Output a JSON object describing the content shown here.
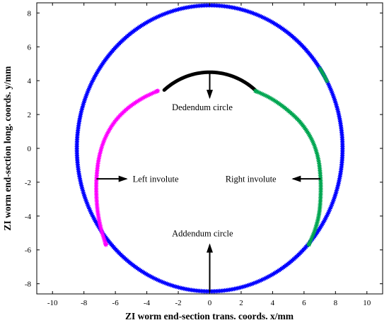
{
  "chart_data": {
    "type": "line",
    "title": "",
    "xlabel": "ZI worm end-section trans. coords. x/mm",
    "ylabel": "ZI worm end-section long. coords. y/mm",
    "xlim": [
      -11,
      11
    ],
    "ylim": [
      -8.6,
      8.6
    ],
    "xticks": [
      -10,
      -8,
      -6,
      -4,
      -2,
      0,
      2,
      4,
      6,
      8,
      10
    ],
    "yticks": [
      -8,
      -6,
      -4,
      -2,
      0,
      2,
      4,
      6,
      8
    ],
    "grid": false,
    "legend": "none",
    "series": [
      {
        "key": "addendum",
        "color": "#0000ff",
        "marker": "star",
        "center": [
          0,
          0
        ],
        "radius": 8.45,
        "angle_range_deg": [
          0,
          360
        ]
      },
      {
        "key": "dedendum",
        "color": "#000000",
        "marker": "none",
        "center": [
          0,
          0
        ],
        "radius": 4.5,
        "angle_range_deg": [
          50,
          130
        ]
      },
      {
        "key": "left_involute",
        "color": "#ff00ff",
        "marker": "star",
        "x": [
          -3.3,
          -4.3,
          -5.3,
          -6.1,
          -6.7,
          -7.05,
          -7.2,
          -7.2,
          -7.1,
          -6.9,
          -6.6
        ],
        "y": [
          3.4,
          2.95,
          2.3,
          1.5,
          0.5,
          -0.6,
          -1.8,
          -2.9,
          -3.9,
          -4.8,
          -5.7
        ]
      },
      {
        "key": "right_involute",
        "color": "#00a651",
        "marker": "star",
        "x": [
          2.9,
          3.9,
          4.9,
          5.8,
          6.5,
          6.9,
          7.05,
          7.05,
          6.95,
          6.7,
          6.3
        ],
        "y": [
          3.4,
          2.95,
          2.3,
          1.5,
          0.5,
          -0.6,
          -1.8,
          -2.9,
          -3.9,
          -4.8,
          -5.7
        ]
      },
      {
        "key": "addendum_green_mark",
        "color": "#00a651",
        "marker": "star",
        "center": [
          0,
          0
        ],
        "radius": 8.45,
        "angle_range_deg": [
          28,
          34
        ]
      }
    ],
    "annotations": [
      {
        "text": "Dedendum circle",
        "arrow_from": [
          0,
          4.5
        ],
        "arrow_to": [
          0,
          3.0
        ],
        "text_at": [
          -2.4,
          2.45
        ]
      },
      {
        "text": "Left involute",
        "arrow_from": [
          -7.2,
          -1.8
        ],
        "arrow_to": [
          -5.3,
          -1.8
        ],
        "text_at": [
          -4.9,
          -1.8
        ]
      },
      {
        "text": "Right involute",
        "arrow_from": [
          7.05,
          -1.8
        ],
        "arrow_to": [
          5.3,
          -1.8
        ],
        "text_at": [
          1.0,
          -1.8
        ]
      },
      {
        "text": "Addendum circle",
        "arrow_from": [
          0,
          -8.45
        ],
        "arrow_to": [
          0,
          -5.7
        ],
        "text_at": [
          -2.4,
          -5.0
        ]
      }
    ]
  }
}
